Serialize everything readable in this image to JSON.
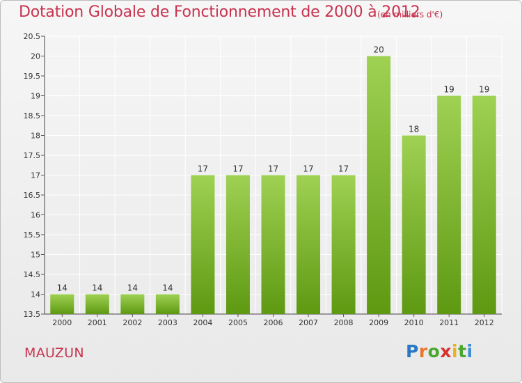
{
  "header": {
    "title": "Dotation Globale de Fonctionnement de 2000 à 2012",
    "subtitle": "(en milliers d'€)"
  },
  "footer": {
    "place": "MAUZUN",
    "logo_letters": [
      "P",
      "r",
      "o",
      "x",
      "i",
      "t",
      "i"
    ],
    "logo_colors": [
      "#2a78c5",
      "#e8762d",
      "#4aa62e",
      "#d6322e",
      "#e9b21e",
      "#4aa62e",
      "#3b8fd6"
    ]
  },
  "colors": {
    "bar_light": "#9fd153",
    "bar_dark": "#5e9912",
    "title": "#c8334f",
    "grid": "#ffffff"
  },
  "chart_data": {
    "type": "bar",
    "categories": [
      "2000",
      "2001",
      "2002",
      "2003",
      "2004",
      "2005",
      "2006",
      "2007",
      "2008",
      "2009",
      "2010",
      "2011",
      "2012"
    ],
    "values": [
      14,
      14,
      14,
      14,
      17,
      17,
      17,
      17,
      17,
      20,
      18,
      19,
      19
    ],
    "value_labels": [
      "14",
      "14",
      "14",
      "14",
      "17",
      "17",
      "17",
      "17",
      "17",
      "20",
      "18",
      "19",
      "19"
    ],
    "y_ticks": [
      13.5,
      14,
      14.5,
      15,
      15.5,
      16,
      16.5,
      17,
      17.5,
      18,
      18.5,
      19,
      19.5,
      20,
      20.5
    ],
    "y_tick_labels": [
      "13.5",
      "14",
      "14.5",
      "15",
      "15.5",
      "16",
      "16.5",
      "17",
      "17.5",
      "18",
      "18.5",
      "19",
      "19.5",
      "20",
      "20.5"
    ],
    "ylim": [
      13.5,
      20.5
    ],
    "grid": true,
    "legend": "none"
  }
}
